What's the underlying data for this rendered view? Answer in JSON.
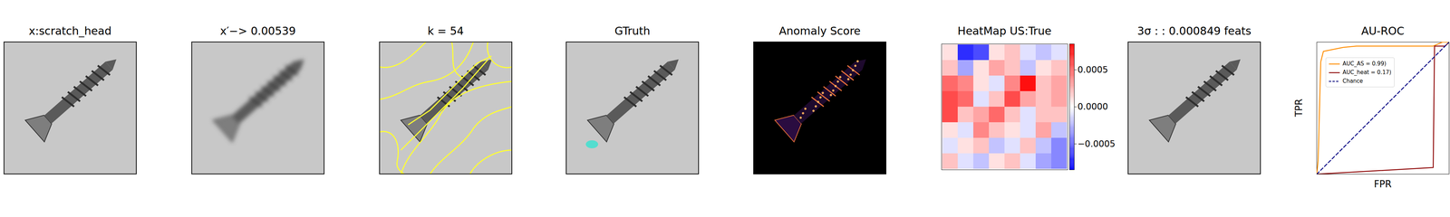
{
  "panels": [
    {
      "type": "image",
      "title": "x:scratch_head"
    },
    {
      "type": "blurred_image",
      "title": "x′−> 0.00539"
    },
    {
      "type": "superpixels",
      "title": "k = 54"
    },
    {
      "type": "mask",
      "title": "GTruth"
    },
    {
      "type": "anomaly_map",
      "title": "Anomaly Score"
    },
    {
      "type": "heatmap",
      "title": "HeatMap US:True",
      "cells": [
        [
          0.0001,
          -0.0007,
          -0.0006,
          0.0001,
          0.0002,
          -0.0001,
          -0.0002,
          -0.0001
        ],
        [
          0.0002,
          -0.0003,
          0.0001,
          0.0003,
          0.0002,
          -0.0002,
          0.0001,
          0.0002
        ],
        [
          0.0005,
          0.0004,
          0.0001,
          -0.0001,
          0.0004,
          0.0008,
          0.0002,
          0.0003
        ],
        [
          0.0006,
          0.0005,
          -0.0001,
          0.0002,
          0.0006,
          0.0003,
          0.0002,
          0.0003
        ],
        [
          0.0006,
          0.0002,
          0.0003,
          0.0005,
          0.0002,
          -0.0001,
          0.0002,
          0.0002
        ],
        [
          0.0001,
          -0.0001,
          0.0004,
          0.0002,
          0.0001,
          -0.0001,
          0.0003,
          -0.0002
        ],
        [
          -0.0001,
          0.0001,
          0.0002,
          -0.0002,
          -0.0001,
          0.0002,
          -0.0002,
          -0.0004
        ],
        [
          0.0002,
          -0.0001,
          -0.0002,
          0.0001,
          0.0002,
          -0.0001,
          -0.0003,
          -0.0004
        ]
      ],
      "colorbar": {
        "range": [
          -0.000849,
          0.000849
        ],
        "ticks": [
          {
            "value": 0.0005,
            "label": "0.0005"
          },
          {
            "value": 0,
            "label": "0.0000"
          },
          {
            "value": -0.0005,
            "label": "−0.0005"
          }
        ]
      }
    },
    {
      "type": "image",
      "title": "3σ : : 0.000849 feats"
    }
  ],
  "chart_data": {
    "type": "line",
    "title": "AU-ROC",
    "x_label": "FPR",
    "y_label": "TPR",
    "xlim": [
      0,
      1
    ],
    "ylim": [
      0,
      1
    ],
    "tick_labels": false,
    "legend": "upper left",
    "series": [
      {
        "name": "AUC_AS = 0.99)",
        "color": "#ff8c00",
        "line_style": "solid",
        "x": [
          0,
          0.01,
          0.03,
          0.05,
          0.2,
          0.3,
          0.88,
          0.95,
          1
        ],
        "values": [
          0,
          0.1,
          0.85,
          0.93,
          0.96,
          0.97,
          0.97,
          1,
          1
        ]
      },
      {
        "name": "AUC_heat = 0.17)",
        "color": "#8b0000",
        "line_style": "solid",
        "x": [
          0,
          0.88,
          0.89,
          0.97,
          1
        ],
        "values": [
          0,
          0.05,
          0.97,
          0.97,
          1
        ]
      },
      {
        "name": "Chance",
        "color": "#000080",
        "line_style": "dashed",
        "x": [
          0,
          1
        ],
        "values": [
          0,
          1
        ]
      }
    ]
  }
}
